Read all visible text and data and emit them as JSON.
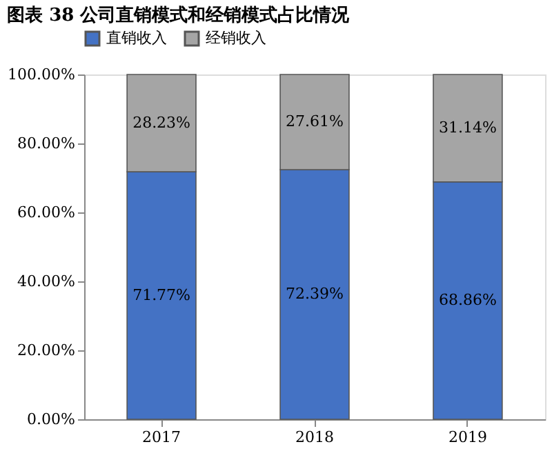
{
  "chart_data": {
    "type": "bar",
    "title": "图表 38 公司直销模式和经销模式占比情况",
    "categories": [
      "2017",
      "2018",
      "2019"
    ],
    "stacked": true,
    "series": [
      {
        "name": "直销收入",
        "color": "#4472c4",
        "values": [
          71.77,
          72.39,
          68.86
        ],
        "value_labels": [
          "71.77%",
          "72.39%",
          "68.86%"
        ]
      },
      {
        "name": "经销收入",
        "color": "#a5a5a5",
        "values": [
          28.23,
          27.61,
          31.14
        ],
        "value_labels": [
          "28.23%",
          "27.61%",
          "31.14%"
        ]
      }
    ],
    "ylim": [
      0,
      100
    ],
    "yticks": [
      {
        "value": 0,
        "label": "0.00%"
      },
      {
        "value": 20,
        "label": "20.00%"
      },
      {
        "value": 40,
        "label": "40.00%"
      },
      {
        "value": 60,
        "label": "60.00%"
      },
      {
        "value": 80,
        "label": "80.00%"
      },
      {
        "value": 100,
        "label": "100.00%"
      }
    ],
    "grid": false,
    "legend": "top"
  }
}
